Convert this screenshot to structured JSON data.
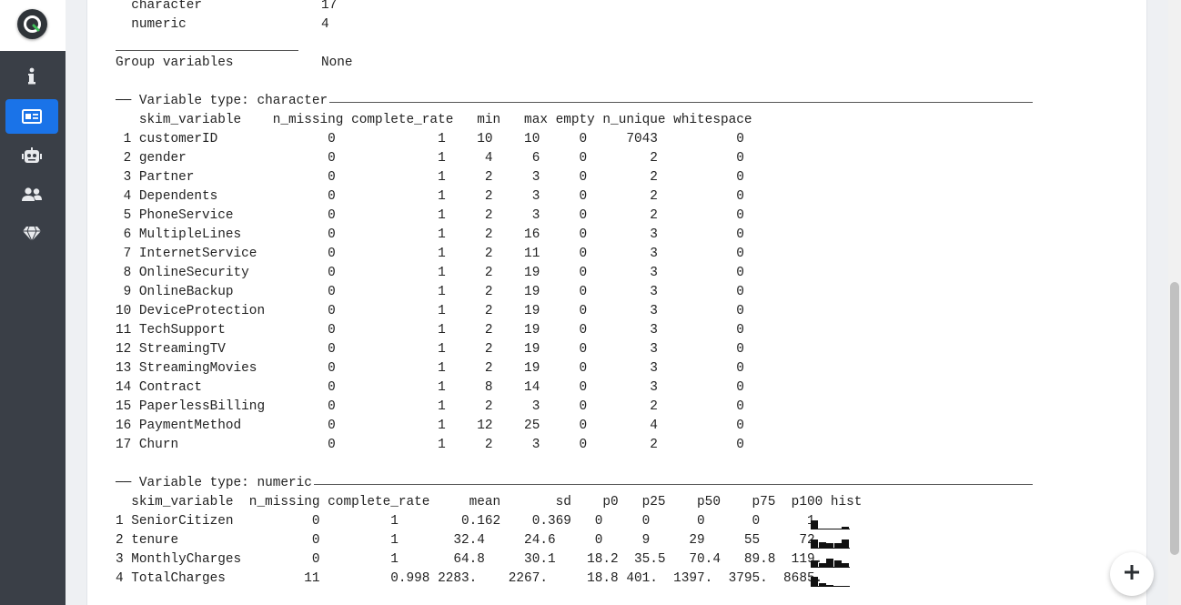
{
  "sidebar": {
    "logo": "q-logo-icon",
    "items": [
      {
        "icon": "info-icon",
        "active": false
      },
      {
        "icon": "id-card-icon",
        "active": true
      },
      {
        "icon": "robot-icon",
        "active": false
      },
      {
        "icon": "users-icon",
        "active": false
      },
      {
        "icon": "diamond-icon",
        "active": false
      }
    ]
  },
  "summary": {
    "rows": [
      {
        "label": "  character",
        "value": "17"
      },
      {
        "label": "  numeric",
        "value": "4"
      }
    ],
    "group_label": "Group variables",
    "group_value": "None"
  },
  "character_section": {
    "title": "── Variable type: character ",
    "header": "   skim_variable    n_missing complete_rate   min   max empty n_unique whitespace",
    "rows": [
      " 1 customerID              0             1    10    10     0     7043          0",
      " 2 gender                  0             1     4     6     0        2          0",
      " 3 Partner                 0             1     2     3     0        2          0",
      " 4 Dependents              0             1     2     3     0        2          0",
      " 5 PhoneService            0             1     2     3     0        2          0",
      " 6 MultipleLines           0             1     2    16     0        3          0",
      " 7 InternetService         0             1     2    11     0        3          0",
      " 8 OnlineSecurity          0             1     2    19     0        3          0",
      " 9 OnlineBackup            0             1     2    19     0        3          0",
      "10 DeviceProtection        0             1     2    19     0        3          0",
      "11 TechSupport             0             1     2    19     0        3          0",
      "12 StreamingTV             0             1     2    19     0        3          0",
      "13 StreamingMovies         0             1     2    19     0        3          0",
      "14 Contract                0             1     8    14     0        3          0",
      "15 PaperlessBilling        0             1     2     3     0        2          0",
      "16 PaymentMethod           0             1    12    25     0        4          0",
      "17 Churn                   0             1     2     3     0        2          0"
    ]
  },
  "numeric_section": {
    "title": "── Variable type: numeric ",
    "header": "  skim_variable  n_missing complete_rate     mean       sd    p0   p25    p50    p75  p100 hist",
    "rows": [
      {
        "text": "1 SeniorCitizen          0         1        0.162    0.369   0     0      0      0      1 ",
        "hist": [
          0.8,
          0.05,
          0.05,
          0.05,
          0.2
        ]
      },
      {
        "text": "2 tenure                 0         1       32.4     24.6     0     9     29     55     72 ",
        "hist": [
          0.8,
          0.5,
          0.45,
          0.45,
          0.75
        ]
      },
      {
        "text": "3 MonthlyCharges         0         1       64.8     30.1    18.2  35.5   70.4   89.8  119. ",
        "hist": [
          0.6,
          0.4,
          0.75,
          0.65,
          0.4
        ]
      },
      {
        "text": "4 TotalCharges          11         0.998 2283.    2267.     18.8 401.  1397.  3795.  8685. ",
        "hist": [
          0.85,
          0.3,
          0.15,
          0.1,
          0.05
        ]
      }
    ]
  },
  "fab": {
    "icon": "plus-icon"
  }
}
